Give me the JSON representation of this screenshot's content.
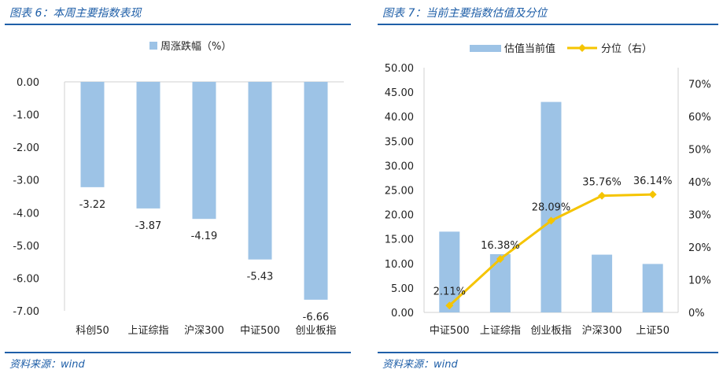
{
  "left": {
    "title": "图表 6：本周主要指数表现",
    "source": "资料来源：wind",
    "chart_data": {
      "type": "bar",
      "legend": "周涨跌幅（%）",
      "legend_position": "top-center",
      "categories": [
        "科创50",
        "上证综指",
        "沪深300",
        "中证500",
        "创业板指"
      ],
      "series": [
        {
          "name": "周涨跌幅（%）",
          "values": [
            -3.22,
            -3.87,
            -4.19,
            -5.43,
            -6.66
          ]
        }
      ],
      "data_labels": [
        "-3.22",
        "-3.87",
        "-4.19",
        "-5.43",
        "-6.66"
      ],
      "ylim": [
        -7,
        0
      ],
      "yticks": [
        "0.00",
        "-1.00",
        "-2.00",
        "-3.00",
        "-4.00",
        "-5.00",
        "-6.00",
        "-7.00"
      ],
      "bar_color": "#9dc3e6",
      "grid": false
    }
  },
  "right": {
    "title": "图表 7：当前主要指数估值及分位",
    "source": "资料来源：wind",
    "chart_data": {
      "type": "bar",
      "legend_position": "top-center",
      "categories": [
        "中证500",
        "上证综指",
        "创业板指",
        "沪深300",
        "上证50"
      ],
      "series": [
        {
          "name": "估值当前值",
          "type": "bar",
          "axis": "left",
          "values": [
            16.5,
            11.9,
            43.0,
            11.8,
            9.9
          ],
          "color": "#9dc3e6"
        },
        {
          "name": "分位（右）",
          "type": "line",
          "axis": "right",
          "values": [
            2.11,
            16.38,
            28.09,
            35.76,
            36.14
          ],
          "color": "#f5c400"
        }
      ],
      "data_labels": [
        "2.11%",
        "16.38%",
        "28.09%",
        "35.76%",
        "36.14%"
      ],
      "ylim": [
        0,
        50
      ],
      "y2lim": [
        0,
        75
      ],
      "yticks": [
        "0.00",
        "5.00",
        "10.00",
        "15.00",
        "20.00",
        "25.00",
        "30.00",
        "35.00",
        "40.00",
        "45.00",
        "50.00"
      ],
      "y2ticks": [
        "0%",
        "10%",
        "20%",
        "30%",
        "40%",
        "50%",
        "60%",
        "70%"
      ],
      "grid": false
    }
  }
}
